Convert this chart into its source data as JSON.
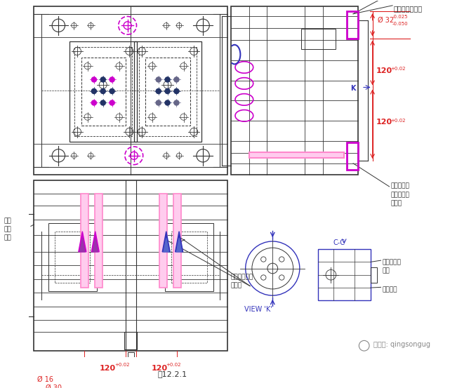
{
  "bg_color": "#ffffff",
  "lc": "#555555",
  "lcd": "#333333",
  "mg": "#cc00cc",
  "bl": "#3333bb",
  "rd": "#dd2222",
  "pk": "#ff88cc",
  "pkf": "#ffccee",
  "gray": "#888888",
  "figure_label": "图12.2.1",
  "watermark": "微信号: qingsongug",
  "ann1": "与旋转板定位销",
  "ann2": "底板、方铁\n和垫板连接\n定位销",
  "ann3": "后模冷却水\n入口",
  "ann4": "模具底板",
  "ann5": "垂直\n端入\n浇口",
  "ann6": "两组独立的顶\n出机构",
  "view_k": "VIEW 'K'",
  "view_cc": "C-C"
}
